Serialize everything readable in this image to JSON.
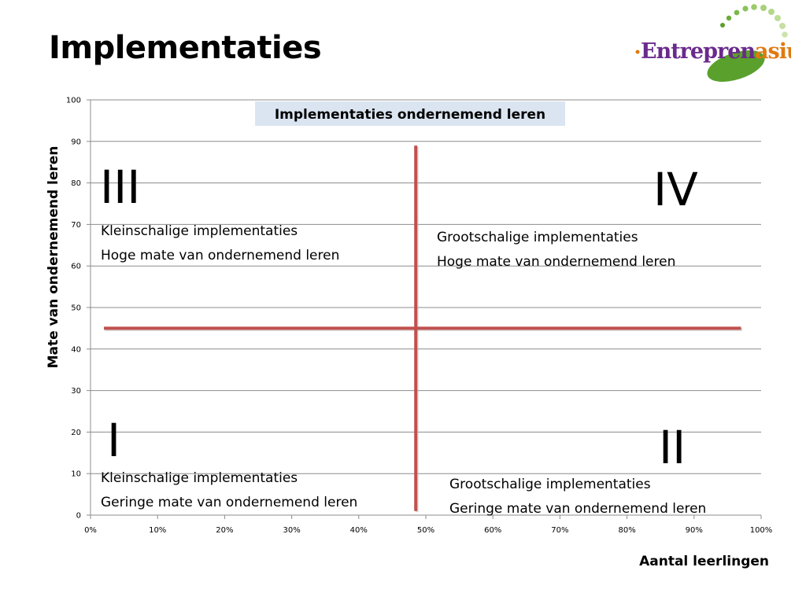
{
  "slide": {
    "title": "Implementaties"
  },
  "logo": {
    "prefix": "Entrepren",
    "suffix": "asium",
    "colors": {
      "prefix": "#6a2a8c",
      "suffix": "#e07a10",
      "accent": "#5aa02c"
    }
  },
  "chart_data": {
    "type": "scatter",
    "title": "Implementaties ondernemend leren",
    "xlabel": "Aantal leerlingen",
    "ylabel": "Mate van ondernemend leren",
    "xlim": [
      0,
      100
    ],
    "ylim": [
      0,
      100
    ],
    "x_ticks": [
      "0%",
      "10%",
      "20%",
      "30%",
      "40%",
      "50%",
      "60%",
      "70%",
      "80%",
      "90%",
      "100%"
    ],
    "y_ticks": [
      "0",
      "10",
      "20",
      "30",
      "40",
      "50",
      "60",
      "70",
      "80",
      "90",
      "100"
    ],
    "grid": true,
    "gridline_color": "#8c8c8c",
    "divider_color": "#c0504d",
    "dividers": [
      {
        "name": "horizontal",
        "x1": 2,
        "y1": 45,
        "x2": 97,
        "y2": 45
      },
      {
        "name": "vertical",
        "x1": 48.5,
        "y1": 1,
        "x2": 48.5,
        "y2": 89
      }
    ],
    "quadrants": [
      {
        "numeral": "III",
        "lines": [
          "Kleinschalige implementaties",
          "Hoge mate van ondernemend leren"
        ]
      },
      {
        "numeral": "IV",
        "lines": [
          "Grootschalige implementaties",
          "Hoge mate van ondernemend leren"
        ]
      },
      {
        "numeral": "I",
        "lines": [
          "Kleinschalige implementaties",
          "Geringe mate van ondernemend leren"
        ]
      },
      {
        "numeral": "II",
        "lines": [
          "Grootschalige implementaties",
          "Geringe mate van ondernemend leren"
        ]
      }
    ]
  }
}
